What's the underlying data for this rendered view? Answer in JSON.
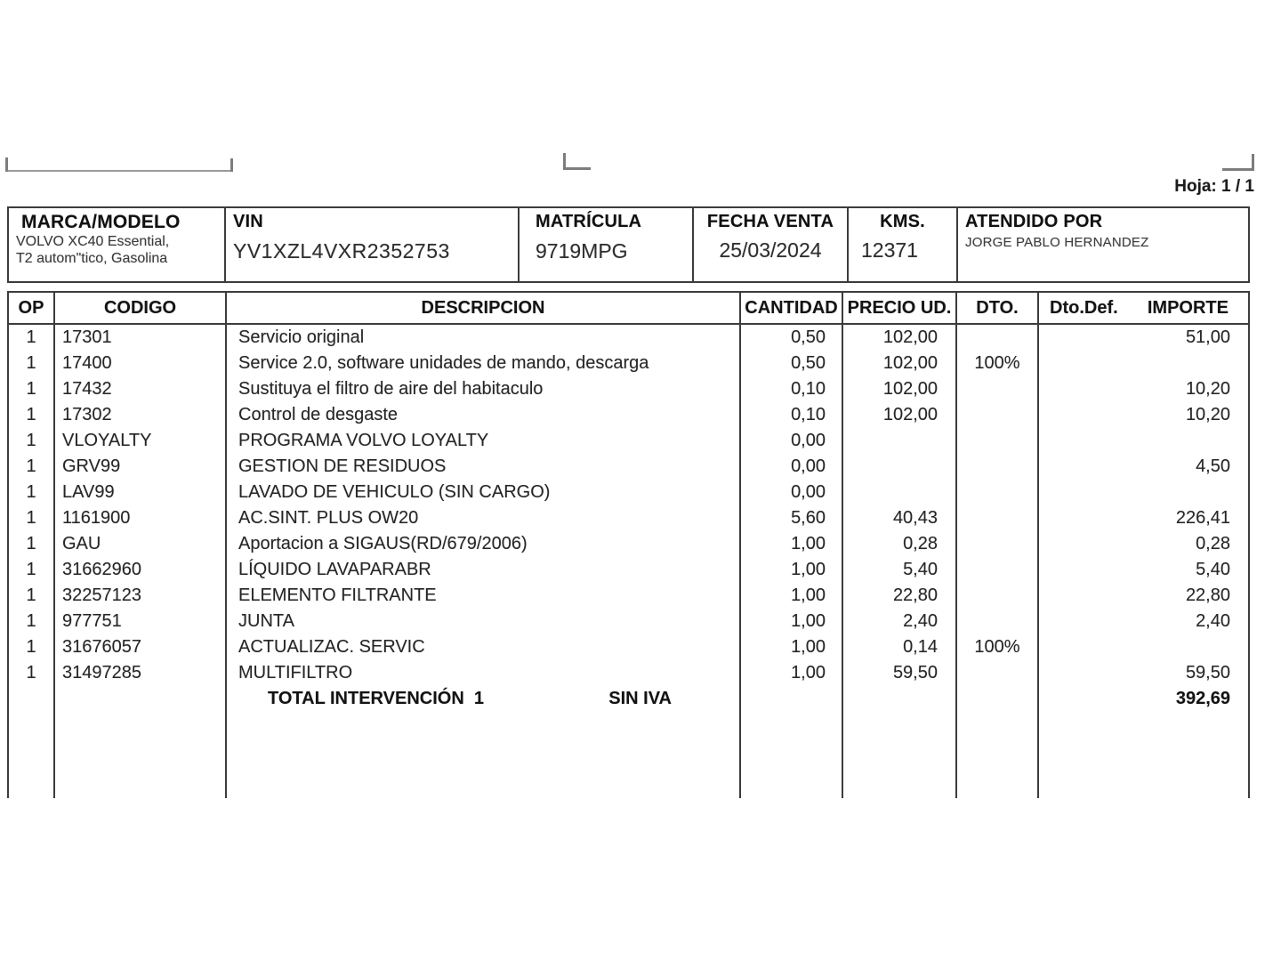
{
  "page": {
    "sheet_label": "Hoja: 1 / 1"
  },
  "vehicle": {
    "marca": {
      "label": "MARCA/MODELO",
      "line1": "VOLVO XC40 Essential,",
      "line2": "T2 autom\"tico, Gasolina"
    },
    "vin": {
      "label": "VIN",
      "value": "YV1XZL4VXR2352753"
    },
    "matricula": {
      "label": "MATRÍCULA",
      "value": "9719MPG"
    },
    "fecha_venta": {
      "label": "FECHA VENTA",
      "value": "25/03/2024"
    },
    "kms": {
      "label": "KMS.",
      "value": "12371"
    },
    "atendido": {
      "label": "ATENDIDO POR",
      "value": "JORGE PABLO HERNANDEZ"
    }
  },
  "table": {
    "headers": {
      "op": "OP",
      "codigo": "CODIGO",
      "descripcion": "DESCRIPCION",
      "cantidad": "CANTIDAD",
      "precio_ud": "PRECIO UD.",
      "dto": "DTO.",
      "dto_def": "Dto.Def.",
      "importe": "IMPORTE"
    },
    "rows": [
      {
        "op": "1",
        "codigo": "17301",
        "descripcion": "Servicio original",
        "cantidad": "0,50",
        "precio": "102,00",
        "dto": "",
        "importe": "51,00"
      },
      {
        "op": "1",
        "codigo": "17400",
        "descripcion": "Service 2.0, software unidades de mando, descarga",
        "cantidad": "0,50",
        "precio": "102,00",
        "dto": "100%",
        "importe": ""
      },
      {
        "op": "1",
        "codigo": "17432",
        "descripcion": "Sustituya el filtro de aire del habitaculo",
        "cantidad": "0,10",
        "precio": "102,00",
        "dto": "",
        "importe": "10,20"
      },
      {
        "op": "1",
        "codigo": "17302",
        "descripcion": "Control de desgaste",
        "cantidad": "0,10",
        "precio": "102,00",
        "dto": "",
        "importe": "10,20"
      },
      {
        "op": "1",
        "codigo": "VLOYALTY",
        "descripcion": "PROGRAMA VOLVO LOYALTY",
        "cantidad": "0,00",
        "precio": "",
        "dto": "",
        "importe": ""
      },
      {
        "op": "1",
        "codigo": "GRV99",
        "descripcion": "GESTION DE RESIDUOS",
        "cantidad": "0,00",
        "precio": "",
        "dto": "",
        "importe": "4,50"
      },
      {
        "op": "1",
        "codigo": "LAV99",
        "descripcion": "LAVADO DE VEHICULO (SIN CARGO)",
        "cantidad": "0,00",
        "precio": "",
        "dto": "",
        "importe": ""
      },
      {
        "op": "1",
        "codigo": "1161900",
        "descripcion": "AC.SINT. PLUS OW20",
        "cantidad": "5,60",
        "precio": "40,43",
        "dto": "",
        "importe": "226,41"
      },
      {
        "op": "1",
        "codigo": "GAU",
        "descripcion": "Aportacion a SIGAUS(RD/679/2006)",
        "cantidad": "1,00",
        "precio": "0,28",
        "dto": "",
        "importe": "0,28"
      },
      {
        "op": "1",
        "codigo": "31662960",
        "descripcion": "LÍQUIDO LAVAPARABR",
        "cantidad": "1,00",
        "precio": "5,40",
        "dto": "",
        "importe": "5,40"
      },
      {
        "op": "1",
        "codigo": "32257123",
        "descripcion": "ELEMENTO FILTRANTE",
        "cantidad": "1,00",
        "precio": "22,80",
        "dto": "",
        "importe": "22,80"
      },
      {
        "op": "1",
        "codigo": "977751",
        "descripcion": "JUNTA",
        "cantidad": "1,00",
        "precio": "2,40",
        "dto": "",
        "importe": "2,40"
      },
      {
        "op": "1",
        "codigo": "31676057",
        "descripcion": "ACTUALIZAC. SERVIC",
        "cantidad": "1,00",
        "precio": "0,14",
        "dto": "100%",
        "importe": ""
      },
      {
        "op": "1",
        "codigo": "31497285",
        "descripcion": "MULTIFILTRO",
        "cantidad": "1,00",
        "precio": "59,50",
        "dto": "",
        "importe": "59,50"
      }
    ],
    "total": {
      "label": "TOTAL INTERVENCIÓN  1",
      "tax_note": "SIN IVA",
      "value": "392,69"
    }
  }
}
